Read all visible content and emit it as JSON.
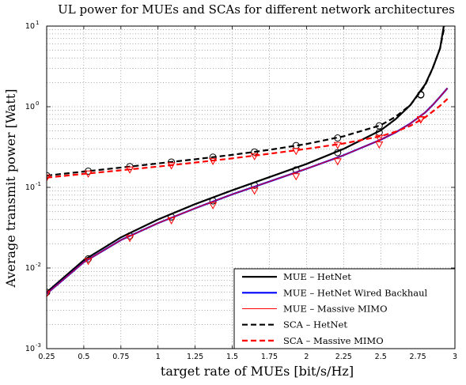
{
  "chart_data": {
    "type": "line",
    "title": "UL power for MUEs and SCAs for different network architectures",
    "xlabel": "target rate of MUEs [bit/s/Hz]",
    "ylabel": "Average transmit power [Watt]",
    "xlim": [
      0.25,
      3.0
    ],
    "ylim": [
      0.001,
      10
    ],
    "yscale": "log",
    "grid": true,
    "legend_position": "bottom-right",
    "x_ticks": [
      "0.25",
      "0.5",
      "0.75",
      "1",
      "1.25",
      "1.5",
      "1.75",
      "2",
      "2.25",
      "2.5",
      "2.75",
      "3"
    ],
    "y_ticks": [
      {
        "base": "10",
        "exp": "-3"
      },
      {
        "base": "10",
        "exp": "-2"
      },
      {
        "base": "10",
        "exp": "-1"
      },
      {
        "base": "10",
        "exp": "0"
      },
      {
        "base": "10",
        "exp": "1"
      }
    ],
    "series": [
      {
        "name": "MUE – HetNet",
        "color": "#000000",
        "style": "solid",
        "width": 2.2,
        "marker": "circle",
        "x": [
          0.25,
          0.5,
          0.75,
          1.0,
          1.25,
          1.5,
          1.75,
          2.0,
          2.25,
          2.5,
          2.6,
          2.7,
          2.8,
          2.85,
          2.9,
          2.925
        ],
        "y": [
          0.005,
          0.0125,
          0.024,
          0.04,
          0.062,
          0.092,
          0.134,
          0.195,
          0.3,
          0.51,
          0.7,
          1.05,
          1.9,
          3.0,
          5.3,
          10.0
        ],
        "marker_x": [
          0.25,
          0.53,
          0.81,
          1.09,
          1.37,
          1.65,
          1.93,
          2.21,
          2.49,
          2.77
        ],
        "marker_y": [
          0.005,
          0.013,
          0.025,
          0.043,
          0.068,
          0.106,
          0.165,
          0.27,
          0.48,
          1.42
        ]
      },
      {
        "name": "MUE – HetNet Wired Backhaul",
        "color": "#0000ff",
        "style": "solid",
        "width": 2.2,
        "marker": "none",
        "x": [
          0.25,
          0.5,
          0.75,
          1.0,
          1.25,
          1.5,
          1.75,
          2.0,
          2.25,
          2.5,
          2.6,
          2.7,
          2.8,
          2.85,
          2.9,
          2.95
        ],
        "y": [
          0.0048,
          0.0118,
          0.0222,
          0.036,
          0.055,
          0.082,
          0.118,
          0.17,
          0.25,
          0.39,
          0.48,
          0.62,
          0.85,
          1.05,
          1.33,
          1.7
        ]
      },
      {
        "name": "MUE – Massive MIMO",
        "color": "#ff0000",
        "style": "solid",
        "width": 1.0,
        "marker": "triangle-down",
        "x": [
          0.25,
          0.5,
          0.75,
          1.0,
          1.25,
          1.5,
          1.75,
          2.0,
          2.25,
          2.5,
          2.6,
          2.7,
          2.8,
          2.85,
          2.9,
          2.95
        ],
        "y": [
          0.0048,
          0.0118,
          0.0222,
          0.036,
          0.055,
          0.082,
          0.118,
          0.17,
          0.25,
          0.39,
          0.48,
          0.62,
          0.85,
          1.05,
          1.33,
          1.7
        ],
        "marker_x": [
          0.25,
          0.53,
          0.81,
          1.09,
          1.37,
          1.65,
          1.93,
          2.21,
          2.49,
          2.77
        ],
        "marker_y": [
          0.0048,
          0.0122,
          0.0235,
          0.039,
          0.06,
          0.091,
          0.137,
          0.21,
          0.34,
          0.7
        ]
      },
      {
        "name": "SCA – HetNet",
        "color": "#000000",
        "style": "dashed",
        "width": 2.2,
        "marker": "circle",
        "x": [
          0.25,
          0.5,
          0.75,
          1.0,
          1.25,
          1.5,
          1.75,
          2.0,
          2.25,
          2.5,
          2.6,
          2.7,
          2.8,
          2.85,
          2.9,
          2.93
        ],
        "y": [
          0.14,
          0.157,
          0.176,
          0.198,
          0.223,
          0.253,
          0.292,
          0.345,
          0.43,
          0.59,
          0.75,
          1.05,
          1.85,
          3.0,
          5.3,
          10.0
        ],
        "marker_x": [
          0.25,
          0.53,
          0.81,
          1.09,
          1.37,
          1.65,
          1.93,
          2.21,
          2.49,
          2.77
        ],
        "marker_y": [
          0.14,
          0.159,
          0.181,
          0.206,
          0.237,
          0.275,
          0.33,
          0.41,
          0.58,
          1.4
        ]
      },
      {
        "name": "SCA – Massive MIMO",
        "color": "#ff0000",
        "style": "dashed",
        "width": 2.2,
        "marker": "triangle-down",
        "x": [
          0.25,
          0.5,
          0.75,
          1.0,
          1.25,
          1.5,
          1.75,
          2.0,
          2.25,
          2.5,
          2.6,
          2.7,
          2.8,
          2.85,
          2.9,
          2.95
        ],
        "y": [
          0.132,
          0.147,
          0.163,
          0.181,
          0.203,
          0.229,
          0.261,
          0.3,
          0.35,
          0.43,
          0.49,
          0.58,
          0.74,
          0.87,
          1.03,
          1.25
        ],
        "marker_x": [
          0.25,
          0.53,
          0.81,
          1.09,
          1.37,
          1.65,
          1.93,
          2.21,
          2.49,
          2.77
        ],
        "marker_y": [
          0.132,
          0.148,
          0.166,
          0.187,
          0.212,
          0.243,
          0.282,
          0.335,
          0.41,
          0.69
        ]
      }
    ]
  }
}
